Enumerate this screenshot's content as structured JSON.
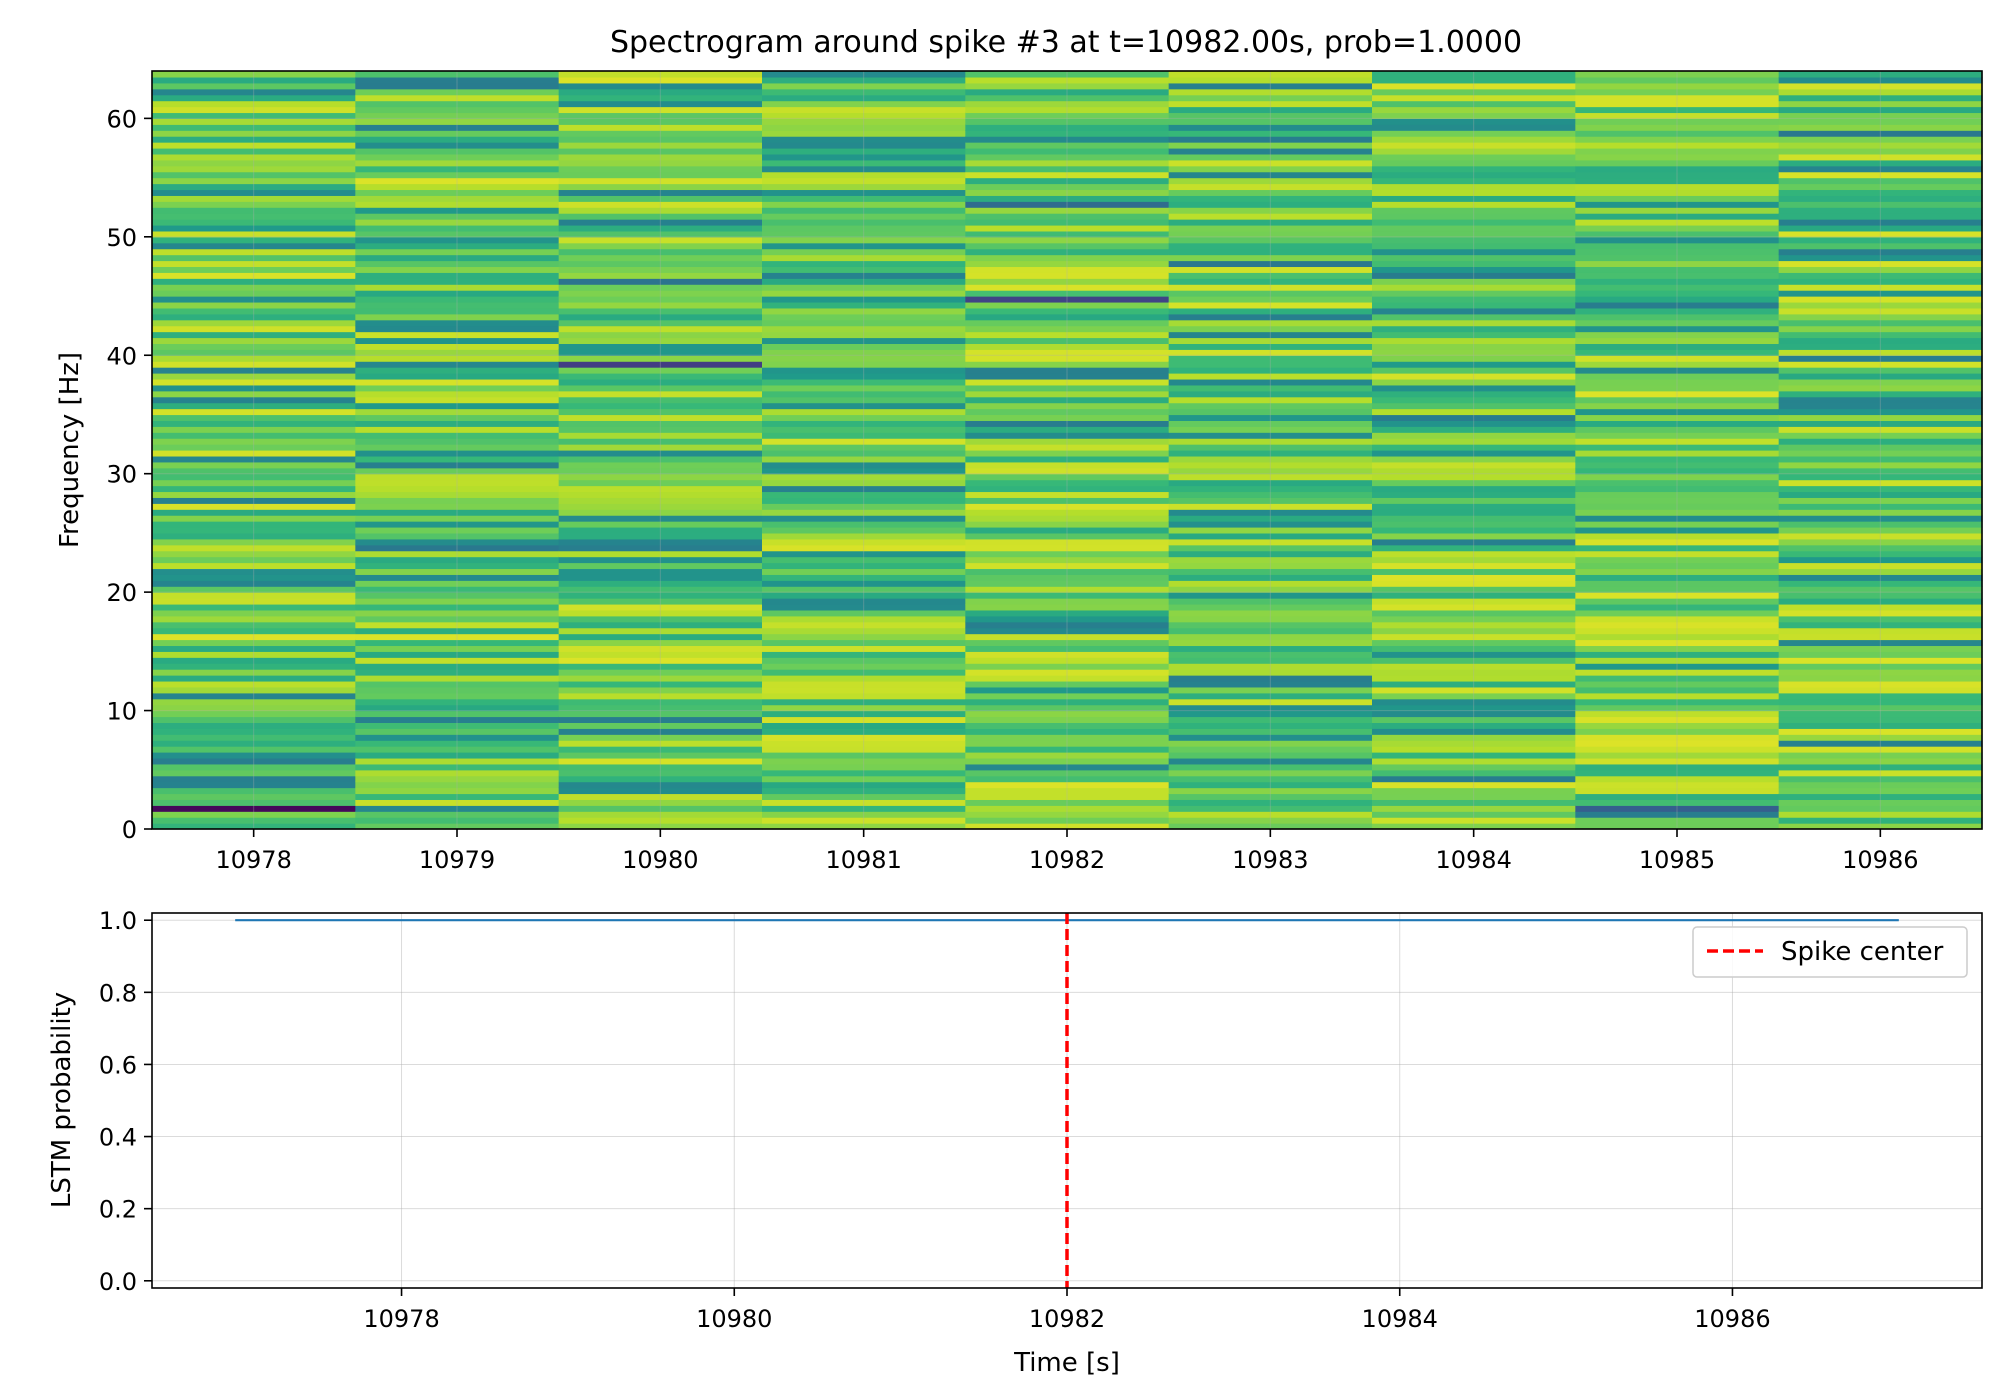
{
  "chart_data": [
    {
      "type": "heatmap",
      "title": "Spectrogram around spike #3 at t=10982.00s, prob=1.0000",
      "xlabel": "",
      "ylabel": "Frequency [Hz]",
      "x": [
        10978,
        10979,
        10980,
        10981,
        10982,
        10983,
        10984,
        10985,
        10986
      ],
      "x_ticks": [
        "10978",
        "10979",
        "10980",
        "10981",
        "10982",
        "10983",
        "10984",
        "10985",
        "10986"
      ],
      "xlim": [
        10977.5,
        10986.5
      ],
      "ylim": [
        0,
        64
      ],
      "y_ticks": [
        "0",
        "10",
        "20",
        "30",
        "40",
        "50",
        "60"
      ],
      "y_tick_values": [
        0,
        10,
        20,
        30,
        40,
        50,
        60
      ],
      "freq_bins": 128,
      "colormap": "viridis",
      "color_range": [
        0.0,
        1.0
      ],
      "seed": 3,
      "low_notes": [
        {
          "col": 0,
          "freq": 1.5,
          "value": 0.02
        },
        {
          "col": 0,
          "freq": 36.0,
          "value": 0.45
        },
        {
          "col": 1,
          "freq": 62.5,
          "value": 0.42
        },
        {
          "col": 1,
          "freq": 23.5,
          "value": 0.4
        },
        {
          "col": 2,
          "freq": 39.0,
          "value": 0.18
        },
        {
          "col": 2,
          "freq": 46.0,
          "value": 0.38
        },
        {
          "col": 4,
          "freq": 44.5,
          "value": 0.2
        },
        {
          "col": 4,
          "freq": 52.5,
          "value": 0.35
        },
        {
          "col": 5,
          "freq": 47.5,
          "value": 0.4
        },
        {
          "col": 6,
          "freq": 46.5,
          "value": 0.42
        },
        {
          "col": 7,
          "freq": 1.5,
          "value": 0.3
        },
        {
          "col": 8,
          "freq": 58.5,
          "value": 0.4
        }
      ],
      "grid": true
    },
    {
      "type": "line",
      "title": "",
      "xlabel": "Time [s]",
      "ylabel": "LSTM probability",
      "xlim": [
        10976.5,
        10987.5
      ],
      "ylim": [
        -0.02,
        1.02
      ],
      "x_ticks": [
        "10978",
        "10980",
        "10982",
        "10984",
        "10986"
      ],
      "x_tick_values": [
        10978,
        10980,
        10982,
        10984,
        10986
      ],
      "y_ticks": [
        "0.0",
        "0.2",
        "0.4",
        "0.6",
        "0.8",
        "1.0"
      ],
      "y_tick_values": [
        0.0,
        0.2,
        0.4,
        0.6,
        0.8,
        1.0
      ],
      "series": [
        {
          "name": "LSTM probability",
          "x": [
            10977,
            10987
          ],
          "values": [
            1.0,
            1.0
          ],
          "color": "#1f77b4"
        }
      ],
      "vline": {
        "x": 10982,
        "label": "Spike center",
        "color": "#ff0000"
      },
      "legend": {
        "position": "top-right",
        "entries": [
          "Spike center"
        ]
      },
      "grid": true
    }
  ]
}
